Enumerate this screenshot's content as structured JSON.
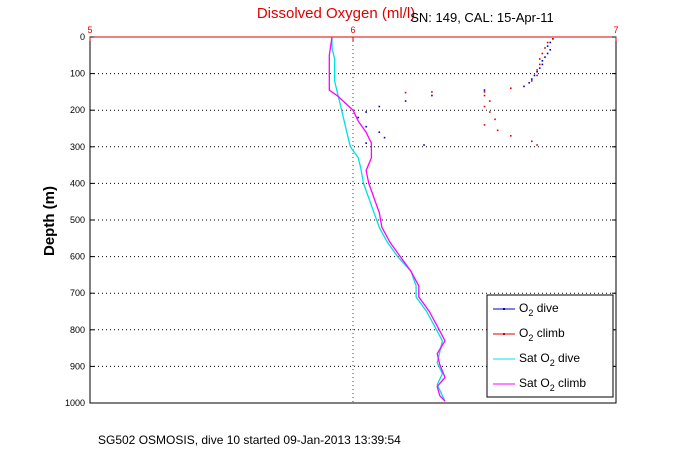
{
  "chart_data": {
    "type": "scatter",
    "title": "Dissolved Oxygen (ml/l)",
    "subtitle": "SN: 149, CAL: 15-Apr-11",
    "footer": "SG502 OSMOSIS, dive 10 started 09-Jan-2013 13:39:54",
    "xlabel": "",
    "ylabel": "Depth (m)",
    "xlim": [
      5,
      7
    ],
    "ylim": [
      0,
      1000
    ],
    "y_reversed": true,
    "x_ticks": [
      "5",
      "6",
      "7"
    ],
    "y_ticks": [
      "0",
      "100",
      "200",
      "300",
      "400",
      "500",
      "600",
      "700",
      "800",
      "900",
      "1000"
    ],
    "grid": true,
    "legend_position": "bottom-right",
    "series": [
      {
        "name": "O2 dive",
        "legend_main": "O",
        "legend_sub": "2",
        "legend_rest": " dive",
        "color": "#0000cc",
        "style": "dots",
        "points": [
          [
            6.76,
            5
          ],
          [
            6.75,
            15
          ],
          [
            6.74,
            25
          ],
          [
            6.75,
            35
          ],
          [
            6.74,
            45
          ],
          [
            6.73,
            55
          ],
          [
            6.72,
            65
          ],
          [
            6.72,
            75
          ],
          [
            6.71,
            85
          ],
          [
            6.7,
            95
          ],
          [
            6.69,
            105
          ],
          [
            6.68,
            115
          ],
          [
            6.67,
            125
          ],
          [
            6.65,
            135
          ],
          [
            6.5,
            145
          ],
          [
            6.3,
            160
          ],
          [
            6.2,
            175
          ],
          [
            6.1,
            190
          ],
          [
            6.05,
            205
          ],
          [
            6.02,
            220
          ],
          [
            6.05,
            245
          ],
          [
            6.1,
            260
          ],
          [
            6.12,
            275
          ],
          [
            6.05,
            290
          ],
          [
            6.27,
            295
          ]
        ]
      },
      {
        "name": "O2 climb",
        "legend_main": "O",
        "legend_sub": "2",
        "legend_rest": " climb",
        "color": "#e00000",
        "style": "dots",
        "points": [
          [
            6.76,
            5
          ],
          [
            6.74,
            15
          ],
          [
            6.73,
            30
          ],
          [
            6.72,
            45
          ],
          [
            6.71,
            60
          ],
          [
            6.71,
            75
          ],
          [
            6.7,
            90
          ],
          [
            6.7,
            105
          ],
          [
            6.68,
            120
          ],
          [
            6.6,
            140
          ],
          [
            6.5,
            150
          ],
          [
            6.3,
            150
          ],
          [
            6.2,
            152
          ],
          [
            6.5,
            160
          ],
          [
            6.52,
            175
          ],
          [
            6.5,
            190
          ],
          [
            6.52,
            205
          ],
          [
            6.54,
            225
          ],
          [
            6.5,
            240
          ],
          [
            6.55,
            255
          ],
          [
            6.6,
            270
          ],
          [
            6.68,
            285
          ],
          [
            6.7,
            295
          ]
        ]
      },
      {
        "name": "Sat O2 dive",
        "legend_main": "Sat O",
        "legend_sub": "2",
        "legend_rest": " dive",
        "color": "#00e0e0",
        "style": "line",
        "points": [
          [
            5.92,
            0
          ],
          [
            5.92,
            30
          ],
          [
            5.93,
            60
          ],
          [
            5.93,
            90
          ],
          [
            5.93,
            120
          ],
          [
            5.94,
            150
          ],
          [
            5.95,
            180
          ],
          [
            5.96,
            210
          ],
          [
            5.97,
            240
          ],
          [
            5.98,
            270
          ],
          [
            5.99,
            300
          ],
          [
            6.02,
            330
          ],
          [
            6.03,
            360
          ],
          [
            6.04,
            400
          ],
          [
            6.06,
            440
          ],
          [
            6.08,
            480
          ],
          [
            6.1,
            520
          ],
          [
            6.13,
            560
          ],
          [
            6.17,
            600
          ],
          [
            6.22,
            640
          ],
          [
            6.24,
            680
          ],
          [
            6.24,
            710
          ],
          [
            6.28,
            750
          ],
          [
            6.31,
            790
          ],
          [
            6.34,
            830
          ],
          [
            6.33,
            860
          ],
          [
            6.32,
            890
          ],
          [
            6.34,
            920
          ],
          [
            6.32,
            950
          ],
          [
            6.34,
            980
          ],
          [
            6.35,
            995
          ]
        ]
      },
      {
        "name": "Sat O2 climb",
        "legend_main": "Sat O",
        "legend_sub": "2",
        "legend_rest": " climb",
        "color": "#ff00ff",
        "style": "line",
        "points": [
          [
            5.92,
            0
          ],
          [
            5.91,
            50
          ],
          [
            5.91,
            100
          ],
          [
            5.91,
            145
          ],
          [
            5.94,
            160
          ],
          [
            5.97,
            180
          ],
          [
            6.0,
            200
          ],
          [
            6.02,
            230
          ],
          [
            6.05,
            260
          ],
          [
            6.07,
            290
          ],
          [
            6.07,
            330
          ],
          [
            6.05,
            365
          ],
          [
            6.06,
            400
          ],
          [
            6.08,
            440
          ],
          [
            6.1,
            480
          ],
          [
            6.11,
            520
          ],
          [
            6.14,
            560
          ],
          [
            6.18,
            600
          ],
          [
            6.22,
            640
          ],
          [
            6.25,
            680
          ],
          [
            6.25,
            710
          ],
          [
            6.29,
            750
          ],
          [
            6.32,
            790
          ],
          [
            6.35,
            830
          ],
          [
            6.32,
            865
          ],
          [
            6.33,
            895
          ],
          [
            6.35,
            930
          ],
          [
            6.32,
            955
          ],
          [
            6.33,
            980
          ],
          [
            6.35,
            995
          ]
        ]
      }
    ]
  }
}
